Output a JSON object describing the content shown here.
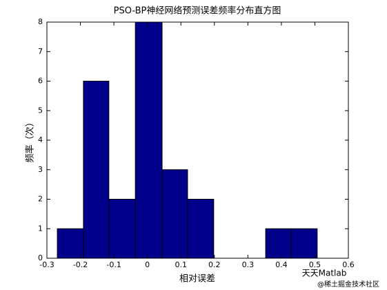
{
  "chart_data": {
    "type": "histogram",
    "title": "PSO-BP神经网络预测误差频率分布直方图",
    "x_label": "相对误差",
    "y_label": "频率（次）",
    "bins": [
      -0.269,
      -0.191,
      -0.115,
      -0.036,
      0.044,
      0.12,
      0.198,
      0.275,
      0.353,
      0.429,
      0.507
    ],
    "counts": [
      1,
      6,
      2,
      8,
      3,
      2,
      0,
      0,
      1,
      1
    ],
    "color": "#00008b",
    "edge_color": "#000000",
    "xlim": [
      -0.3,
      0.6
    ],
    "xticks": [
      -0.3,
      -0.2,
      -0.1,
      0,
      0.1,
      0.2,
      0.3,
      0.4,
      0.5,
      0.6
    ],
    "ylim": [
      0,
      8
    ],
    "yticks": [
      0,
      1,
      2,
      3,
      4,
      5,
      6,
      7,
      8
    ],
    "watermark": [
      "天天Matlab",
      "@稀土掘金技术社区"
    ]
  }
}
